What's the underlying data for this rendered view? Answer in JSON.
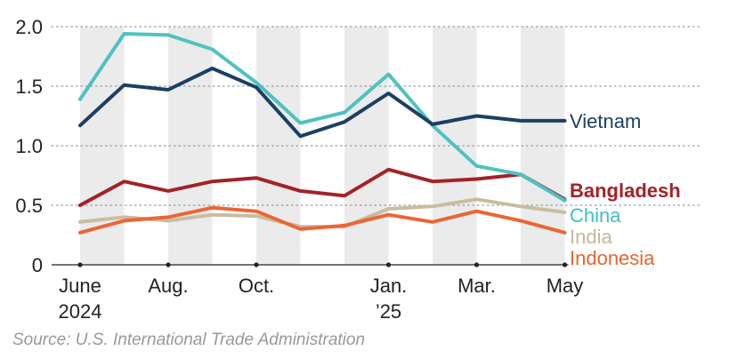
{
  "chart_data": {
    "type": "line",
    "x": [
      "June 2024",
      "July 2024",
      "Aug. 2024",
      "Sept. 2024",
      "Oct. 2024",
      "Nov. 2024",
      "Dec. 2024",
      "Jan. 2025",
      "Feb. 2025",
      "Mar. 2025",
      "Apr. 2025",
      "May 2025"
    ],
    "x_tick_labels": [
      {
        "index": 0,
        "line1": "June",
        "line2": "2024"
      },
      {
        "index": 2,
        "line1": "Aug.",
        "line2": ""
      },
      {
        "index": 4,
        "line1": "Oct.",
        "line2": ""
      },
      {
        "index": 7,
        "line1": "Jan.",
        "line2": "’25"
      },
      {
        "index": 9,
        "line1": "Mar.",
        "line2": ""
      },
      {
        "index": 11,
        "line1": "May",
        "line2": ""
      }
    ],
    "y_ticks": [
      {
        "value": 0,
        "label": "0"
      },
      {
        "value": 0.5,
        "label": "0.5"
      },
      {
        "value": 1.0,
        "label": "1.0"
      },
      {
        "value": 1.5,
        "label": "1.5"
      },
      {
        "value": 2.0,
        "label": "2.0"
      }
    ],
    "ylim": [
      0,
      2.0
    ],
    "grid": true,
    "shaded_bands": "alternating months",
    "legend_placement": "right, at line ends",
    "series": [
      {
        "name": "Vietnam",
        "color": "#1b3f66",
        "label_color": "#1b3f66",
        "bold": false,
        "values": [
          1.17,
          1.51,
          1.47,
          1.65,
          1.49,
          1.08,
          1.2,
          1.44,
          1.18,
          1.25,
          1.21,
          1.21
        ]
      },
      {
        "name": "China",
        "color": "#4ec2c0",
        "label_color": "#3fbfc0",
        "bold": false,
        "values": [
          1.39,
          1.94,
          1.93,
          1.81,
          1.53,
          1.19,
          1.28,
          1.6,
          1.17,
          0.83,
          0.76,
          0.54
        ]
      },
      {
        "name": "Bangladesh",
        "color": "#a32227",
        "label_color": "#a32227",
        "bold": true,
        "values": [
          0.5,
          0.7,
          0.62,
          0.7,
          0.73,
          0.62,
          0.58,
          0.8,
          0.7,
          0.72,
          0.76,
          0.55
        ]
      },
      {
        "name": "India",
        "color": "#c8bd9f",
        "label_color": "#c4b89a",
        "bold": false,
        "values": [
          0.36,
          0.4,
          0.37,
          0.42,
          0.41,
          0.32,
          0.32,
          0.47,
          0.49,
          0.55,
          0.49,
          0.44
        ]
      },
      {
        "name": "Indonesia",
        "color": "#ec6535",
        "label_color": "#e8642f",
        "bold": false,
        "values": [
          0.27,
          0.37,
          0.4,
          0.48,
          0.45,
          0.3,
          0.33,
          0.42,
          0.36,
          0.45,
          0.37,
          0.27
        ]
      }
    ]
  },
  "source": "Source: U.S. International Trade Administration"
}
